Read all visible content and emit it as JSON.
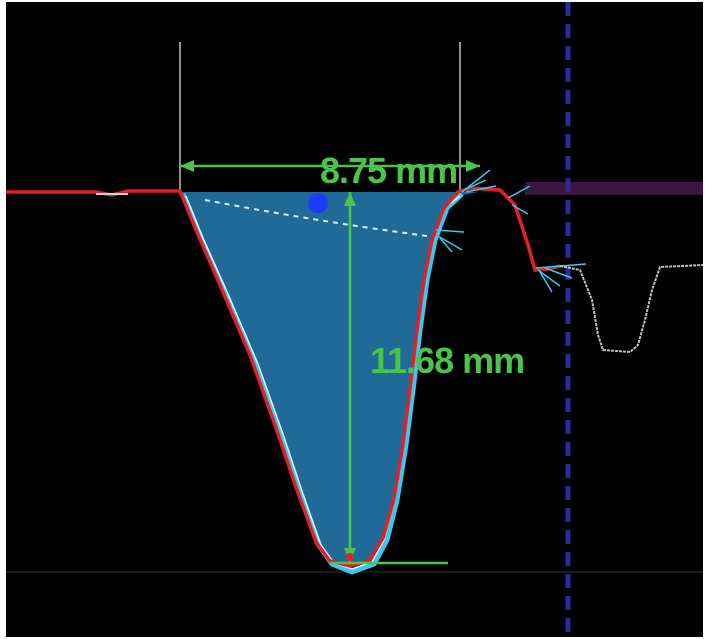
{
  "measurements": {
    "width_label": "8.75 mm",
    "depth_label": "11.68 mm",
    "width_value_mm": 8.75,
    "depth_value_mm": 11.68
  },
  "colors": {
    "background": "#000000",
    "frame": "#ffffff",
    "measurement": "#4bc44b",
    "surface_profile": "#e0202a",
    "fit_profile": "#38c8f0",
    "groove_fill": "#1f6a96",
    "guide_lines": "#b8c8c8",
    "marker": "#1a3cff",
    "scan_line": "#2a2a9a",
    "reference_band": "#3a1640"
  },
  "icons": {
    "marker": "dot-marker-icon"
  }
}
